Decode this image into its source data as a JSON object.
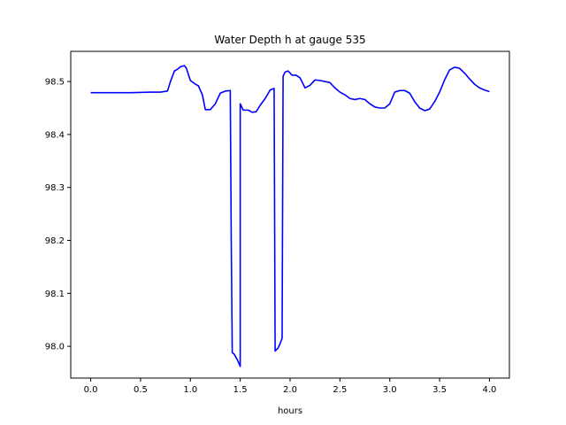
{
  "chart_data": {
    "type": "line",
    "title": "Water Depth h at gauge 535",
    "xlabel": "hours",
    "ylabel": "",
    "xlim": [
      -0.2,
      4.2
    ],
    "ylim": [
      97.94,
      98.557
    ],
    "xticks": [
      0.0,
      0.5,
      1.0,
      1.5,
      2.0,
      2.5,
      3.0,
      3.5,
      4.0
    ],
    "xtick_labels": [
      "0.0",
      "0.5",
      "1.0",
      "1.5",
      "2.0",
      "2.5",
      "3.0",
      "3.5",
      "4.0"
    ],
    "yticks": [
      98.0,
      98.1,
      98.2,
      98.3,
      98.4,
      98.5
    ],
    "ytick_labels": [
      "98.0",
      "98.1",
      "98.2",
      "98.3",
      "98.4",
      "98.5"
    ],
    "grid": false,
    "series": [
      {
        "color": "#0000ff",
        "x": [
          0.0,
          0.2,
          0.4,
          0.6,
          0.7,
          0.77,
          0.8,
          0.84,
          0.87,
          0.9,
          0.94,
          0.96,
          1.0,
          1.05,
          1.08,
          1.12,
          1.15,
          1.2,
          1.25,
          1.3,
          1.35,
          1.4,
          1.41,
          1.42,
          1.44,
          1.47,
          1.5,
          1.5,
          1.53,
          1.58,
          1.62,
          1.66,
          1.7,
          1.75,
          1.8,
          1.84,
          1.85,
          1.88,
          1.9,
          1.92,
          1.93,
          1.95,
          1.98,
          2.02,
          2.06,
          2.1,
          2.15,
          2.2,
          2.25,
          2.3,
          2.35,
          2.4,
          2.45,
          2.5,
          2.55,
          2.6,
          2.65,
          2.7,
          2.75,
          2.8,
          2.85,
          2.9,
          2.95,
          3.0,
          3.05,
          3.1,
          3.15,
          3.2,
          3.25,
          3.3,
          3.35,
          3.4,
          3.45,
          3.5,
          3.55,
          3.6,
          3.65,
          3.7,
          3.75,
          3.8,
          3.85,
          3.9,
          3.95,
          4.0
        ],
        "y": [
          98.479,
          98.479,
          98.479,
          98.48,
          98.48,
          98.482,
          98.5,
          98.52,
          98.523,
          98.528,
          98.53,
          98.525,
          98.502,
          98.495,
          98.492,
          98.475,
          98.447,
          98.447,
          98.458,
          98.478,
          98.482,
          98.483,
          98.2,
          97.988,
          97.985,
          97.975,
          97.962,
          98.458,
          98.446,
          98.446,
          98.442,
          98.443,
          98.455,
          98.468,
          98.484,
          98.487,
          97.991,
          97.997,
          98.005,
          98.015,
          98.51,
          98.518,
          98.52,
          98.512,
          98.512,
          98.507,
          98.488,
          98.493,
          98.503,
          98.502,
          98.5,
          98.498,
          98.488,
          98.48,
          98.475,
          98.468,
          98.466,
          98.468,
          98.466,
          98.458,
          98.452,
          98.45,
          98.45,
          98.458,
          98.48,
          98.483,
          98.483,
          98.478,
          98.462,
          98.45,
          98.445,
          98.448,
          98.462,
          98.48,
          98.503,
          98.522,
          98.527,
          98.525,
          98.516,
          98.505,
          98.495,
          98.488,
          98.484,
          98.481
        ]
      }
    ]
  }
}
